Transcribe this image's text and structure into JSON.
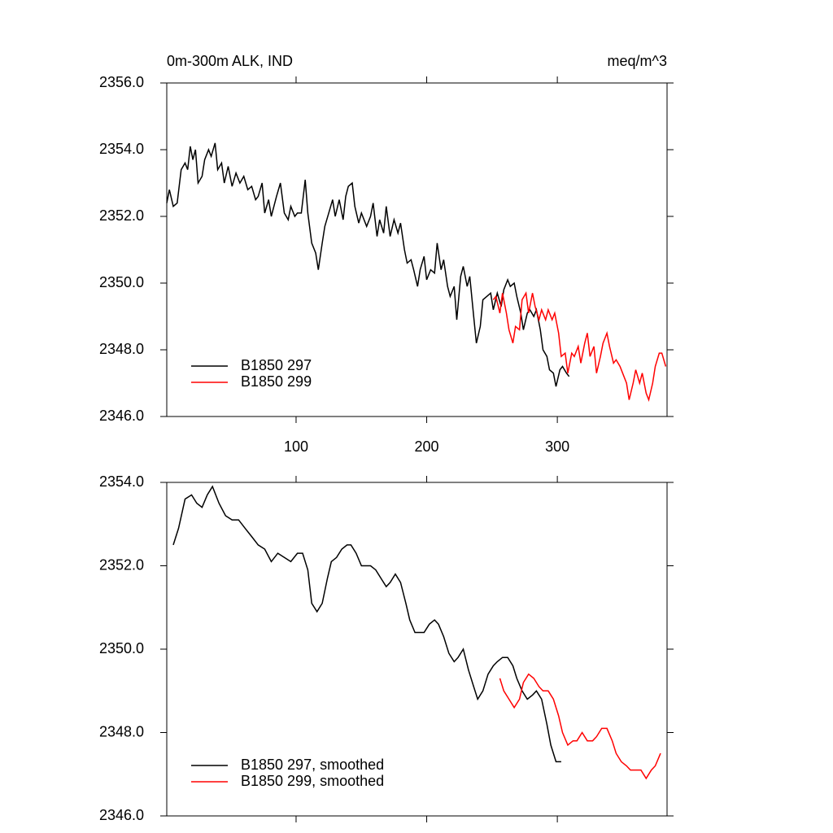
{
  "chart_data": [
    {
      "type": "line",
      "title": "0m-300m ALK, IND",
      "units": "meq/m^3",
      "xlim": [
        1,
        384
      ],
      "xticks": [
        100,
        200,
        300
      ],
      "show_xtick_labels": true,
      "ylim": [
        2346,
        2356
      ],
      "yticks": [
        {
          "value": 2356,
          "label": "2356.0"
        },
        {
          "value": 2354,
          "label": "2354.0"
        },
        {
          "value": 2352,
          "label": "2352.0"
        },
        {
          "value": 2350,
          "label": "2350.0"
        },
        {
          "value": 2348,
          "label": "2348.0"
        },
        {
          "value": 2346,
          "label": "2346.0"
        }
      ],
      "legend": "lower left",
      "series": [
        {
          "name": "B1850 297",
          "color": "#000000",
          "x": [
            1,
            3,
            6,
            9,
            12,
            15,
            17,
            19,
            21,
            23,
            25,
            28,
            30,
            33,
            35,
            38,
            40,
            43,
            45,
            48,
            51,
            54,
            57,
            60,
            63,
            66,
            69,
            71,
            74,
            76,
            79,
            81,
            85,
            88,
            91,
            94,
            96,
            99,
            101,
            104,
            107,
            109,
            112,
            115,
            117,
            120,
            122,
            125,
            128,
            130,
            133,
            136,
            138,
            140,
            143,
            145,
            148,
            150,
            154,
            157,
            159,
            162,
            164,
            167,
            169,
            172,
            175,
            178,
            180,
            183,
            185,
            188,
            190,
            193,
            195,
            198,
            200,
            203,
            206,
            208,
            211,
            213,
            216,
            218,
            221,
            223,
            226,
            228,
            231,
            233,
            236,
            238,
            241,
            243,
            246,
            249,
            251,
            254,
            257,
            259,
            262,
            264,
            267,
            269,
            272,
            274,
            277,
            279,
            282,
            284,
            287,
            289,
            292,
            294,
            297,
            299,
            302,
            304,
            307,
            309
          ],
          "values": [
            2352.4,
            2352.8,
            2352.3,
            2352.4,
            2353.4,
            2353.6,
            2353.4,
            2354.1,
            2353.7,
            2354.0,
            2353.0,
            2353.2,
            2353.7,
            2354.0,
            2353.8,
            2354.2,
            2353.4,
            2353.6,
            2353.0,
            2353.5,
            2352.9,
            2353.3,
            2353.0,
            2353.2,
            2352.8,
            2352.9,
            2352.5,
            2352.6,
            2353.0,
            2352.1,
            2352.5,
            2352.0,
            2352.6,
            2353.0,
            2352.1,
            2351.9,
            2352.3,
            2352.0,
            2352.1,
            2352.1,
            2353.1,
            2352.1,
            2351.2,
            2350.9,
            2350.4,
            2351.2,
            2351.7,
            2352.1,
            2352.5,
            2352.0,
            2352.5,
            2351.9,
            2352.6,
            2352.9,
            2353.0,
            2352.3,
            2351.8,
            2352.1,
            2351.7,
            2352.0,
            2352.4,
            2351.4,
            2351.9,
            2351.5,
            2352.3,
            2351.4,
            2351.9,
            2351.5,
            2351.8,
            2351.0,
            2350.6,
            2350.7,
            2350.4,
            2349.9,
            2350.4,
            2350.8,
            2350.1,
            2350.4,
            2350.3,
            2351.2,
            2350.4,
            2350.7,
            2349.9,
            2349.6,
            2349.9,
            2348.9,
            2350.2,
            2350.5,
            2349.9,
            2350.2,
            2349.0,
            2348.2,
            2348.7,
            2349.5,
            2349.6,
            2349.7,
            2349.2,
            2349.7,
            2349.3,
            2349.8,
            2350.1,
            2349.9,
            2350.0,
            2349.6,
            2349.1,
            2348.6,
            2349.1,
            2349.2,
            2349.0,
            2349.2,
            2348.6,
            2348.0,
            2347.8,
            2347.4,
            2347.3,
            2346.9,
            2347.4,
            2347.5,
            2347.3,
            2347.2
          ]
        },
        {
          "name": "B1850 299",
          "color": "#ff0000",
          "x": [
            251,
            253,
            256,
            258,
            261,
            263,
            266,
            268,
            271,
            273,
            276,
            278,
            281,
            283,
            286,
            288,
            291,
            293,
            296,
            298,
            301,
            303,
            306,
            308,
            311,
            313,
            316,
            318,
            321,
            323,
            325,
            328,
            330,
            333,
            335,
            338,
            340,
            343,
            345,
            348,
            350,
            353,
            355,
            358,
            360,
            363,
            365,
            368,
            370,
            373,
            375,
            378,
            380,
            383
          ],
          "values": [
            2349.5,
            2349.6,
            2349.1,
            2349.7,
            2349.1,
            2348.6,
            2348.2,
            2348.7,
            2348.6,
            2349.5,
            2349.7,
            2349.1,
            2349.7,
            2349.3,
            2348.9,
            2349.2,
            2348.9,
            2349.2,
            2348.9,
            2349.1,
            2348.5,
            2347.8,
            2347.9,
            2347.3,
            2347.9,
            2347.8,
            2348.1,
            2347.6,
            2348.2,
            2348.5,
            2347.8,
            2348.1,
            2347.3,
            2347.8,
            2348.2,
            2348.5,
            2348.1,
            2347.6,
            2347.7,
            2347.5,
            2347.3,
            2347.0,
            2346.5,
            2347.0,
            2347.4,
            2347.0,
            2347.3,
            2346.7,
            2346.5,
            2347.0,
            2347.5,
            2347.9,
            2347.9,
            2347.5
          ]
        }
      ]
    },
    {
      "type": "line",
      "xlim": [
        1,
        384
      ],
      "xticks": [
        100,
        200,
        300
      ],
      "show_xtick_labels": false,
      "ylim": [
        2346,
        2354
      ],
      "yticks": [
        {
          "value": 2354,
          "label": "2354.0"
        },
        {
          "value": 2352,
          "label": "2352.0"
        },
        {
          "value": 2350,
          "label": "2350.0"
        },
        {
          "value": 2348,
          "label": "2348.0"
        },
        {
          "value": 2346,
          "label": "2346.0"
        }
      ],
      "legend": "lower left",
      "series": [
        {
          "name": "B1850 297, smoothed",
          "color": "#000000",
          "x": [
            6,
            10,
            15,
            20,
            24,
            28,
            32,
            36,
            41,
            46,
            51,
            56,
            61,
            66,
            71,
            76,
            81,
            86,
            91,
            96,
            101,
            105,
            109,
            112,
            116,
            120,
            124,
            127,
            131,
            135,
            139,
            142,
            146,
            150,
            154,
            157,
            161,
            165,
            169,
            172,
            176,
            180,
            184,
            187,
            191,
            195,
            198,
            202,
            206,
            209,
            213,
            217,
            221,
            224,
            228,
            232,
            236,
            239,
            243,
            247,
            251,
            254,
            258,
            262,
            266,
            269,
            273,
            277,
            281,
            284,
            288,
            292,
            295,
            299,
            303
          ],
          "values": [
            2352.5,
            2352.9,
            2353.6,
            2353.7,
            2353.5,
            2353.4,
            2353.7,
            2353.9,
            2353.5,
            2353.2,
            2353.1,
            2353.1,
            2352.9,
            2352.7,
            2352.5,
            2352.4,
            2352.1,
            2352.3,
            2352.2,
            2352.1,
            2352.3,
            2352.3,
            2351.9,
            2351.1,
            2350.9,
            2351.1,
            2351.7,
            2352.1,
            2352.2,
            2352.4,
            2352.5,
            2352.5,
            2352.3,
            2352.0,
            2352.0,
            2352.0,
            2351.9,
            2351.7,
            2351.5,
            2351.6,
            2351.8,
            2351.6,
            2351.1,
            2350.7,
            2350.4,
            2350.4,
            2350.4,
            2350.6,
            2350.7,
            2350.6,
            2350.3,
            2349.9,
            2349.7,
            2349.8,
            2350.0,
            2349.5,
            2349.1,
            2348.8,
            2349.0,
            2349.4,
            2349.6,
            2349.7,
            2349.8,
            2349.8,
            2349.6,
            2349.3,
            2349.0,
            2348.8,
            2348.9,
            2349.0,
            2348.8,
            2348.2,
            2347.7,
            2347.3,
            2347.3
          ]
        },
        {
          "name": "B1850 299, smoothed",
          "color": "#ff0000",
          "x": [
            256,
            259,
            263,
            267,
            271,
            274,
            278,
            282,
            286,
            289,
            293,
            297,
            301,
            304,
            308,
            312,
            315,
            319,
            323,
            327,
            330,
            334,
            338,
            342,
            345,
            349,
            353,
            356,
            360,
            364,
            368,
            372,
            375,
            379
          ],
          "values": [
            2349.3,
            2349.0,
            2348.8,
            2348.6,
            2348.8,
            2349.2,
            2349.4,
            2349.3,
            2349.1,
            2349.0,
            2349.0,
            2348.8,
            2348.4,
            2348.0,
            2347.7,
            2347.8,
            2347.8,
            2348.0,
            2347.8,
            2347.8,
            2347.9,
            2348.1,
            2348.1,
            2347.8,
            2347.5,
            2347.3,
            2347.2,
            2347.1,
            2347.1,
            2347.1,
            2346.9,
            2347.1,
            2347.2,
            2347.5
          ]
        }
      ]
    }
  ]
}
